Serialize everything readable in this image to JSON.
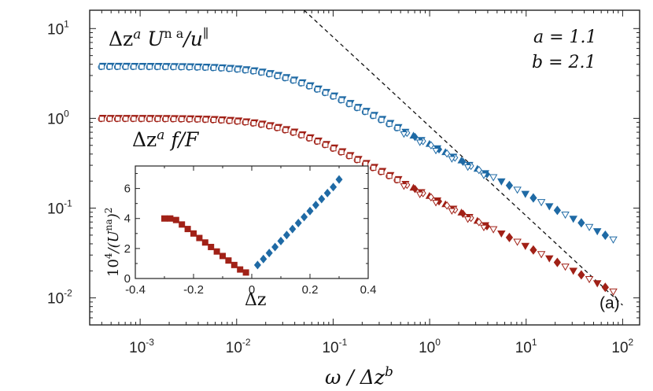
{
  "chart_data": {
    "type": "scatter",
    "main": {
      "x_scale": "log",
      "y_scale": "log",
      "xlim": [
        0.0003,
        150
      ],
      "ylim": [
        0.005,
        16
      ],
      "xticks": [
        {
          "value": 0.001,
          "base": "10",
          "exp": "-3"
        },
        {
          "value": 0.01,
          "base": "10",
          "exp": "-2"
        },
        {
          "value": 0.1,
          "base": "10",
          "exp": "-1"
        },
        {
          "value": 1,
          "base": "10",
          "exp": "0"
        },
        {
          "value": 10,
          "base": "10",
          "exp": "1"
        },
        {
          "value": 100,
          "base": "10",
          "exp": "2"
        }
      ],
      "yticks": [
        {
          "value": 0.01,
          "base": "10",
          "exp": "-2"
        },
        {
          "value": 0.1,
          "base": "10",
          "exp": "-1"
        },
        {
          "value": 1,
          "base": "10",
          "exp": "0"
        },
        {
          "value": 10,
          "base": "10",
          "exp": "1"
        }
      ],
      "xlabel": {
        "prefix": "ω / Δz",
        "sup": "b"
      },
      "params": {
        "a": "a = 1.1",
        "b": "b = 2.1"
      },
      "panel_label": "(a)",
      "series": [
        {
          "name": "Δz^a U^na / u^∥",
          "label_parts": {
            "pre": "Δz",
            "a": "a",
            "U": " U",
            "na": "n a",
            "slash": "/u",
            "par": "∥"
          },
          "color": "#1f6aa5",
          "plateau": 3.8,
          "x_start": 0.0004,
          "x_end": 80
        },
        {
          "name": "Δz^a f / F",
          "label_parts": {
            "pre": "Δz",
            "a": "a",
            "rest": " f/F"
          },
          "color": "#a12117",
          "plateau": 1.0,
          "x_start": 0.0004,
          "x_end": 80
        }
      ],
      "reference_line": {
        "style": "dashed",
        "slope": -1,
        "points": [
          [
            0.05,
            16
          ],
          [
            100,
            0.0083
          ]
        ]
      }
    },
    "inset": {
      "xlim": [
        -0.4,
        0.4
      ],
      "ylim": [
        0,
        7.5
      ],
      "xticks": [
        "-0.4",
        "-0.2",
        "0",
        "0.2",
        "0.4"
      ],
      "yticks": [
        "0",
        "2",
        "4",
        "6"
      ],
      "xlabel": "Δz",
      "ylabel": {
        "pre": "10",
        "exp4": "4",
        "mid": "/(U",
        "na": "na",
        "close": ")",
        "exp2": "2"
      },
      "series": [
        {
          "name": "negative Δz",
          "color": "#a12117",
          "marker": "square",
          "x": [
            -0.3,
            -0.28,
            -0.26,
            -0.24,
            -0.22,
            -0.2,
            -0.18,
            -0.16,
            -0.14,
            -0.12,
            -0.1,
            -0.08,
            -0.06,
            -0.04,
            -0.02
          ],
          "y": [
            4.0,
            4.0,
            3.9,
            3.6,
            3.3,
            3.0,
            2.7,
            2.4,
            2.1,
            1.8,
            1.5,
            1.2,
            0.9,
            0.6,
            0.4
          ]
        },
        {
          "name": "positive Δz",
          "color": "#1f6aa5",
          "marker": "diamond",
          "x": [
            0.02,
            0.04,
            0.06,
            0.08,
            0.1,
            0.12,
            0.14,
            0.16,
            0.18,
            0.2,
            0.22,
            0.24,
            0.26,
            0.28,
            0.3
          ],
          "y": [
            0.9,
            1.3,
            1.7,
            2.1,
            2.5,
            2.9,
            3.3,
            3.7,
            4.1,
            4.5,
            4.9,
            5.3,
            5.7,
            6.1,
            6.6
          ]
        }
      ]
    }
  }
}
